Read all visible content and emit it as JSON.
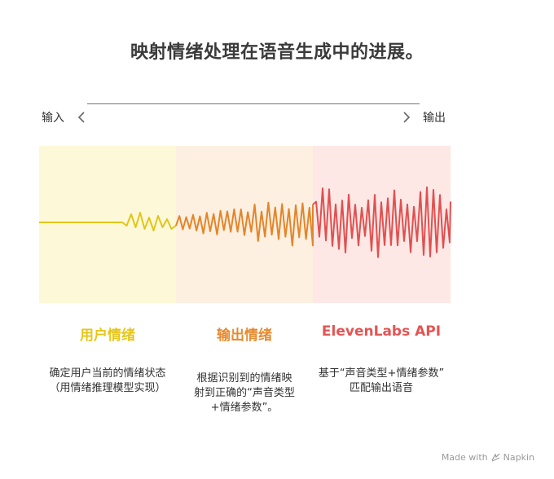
{
  "title": "映射情绪处理在语音生成中的进展。",
  "flow": {
    "input_label": "输入",
    "output_label": "输出"
  },
  "colors": {
    "panel_1_bg": "#fdf8d8",
    "panel_2_bg": "#fdf0e1",
    "panel_3_bg": "#fde8e6",
    "stage_1": "#e6c619",
    "stage_2": "#e68a2e",
    "stage_3": "#e35454"
  },
  "stages": [
    {
      "title": "用户情绪",
      "description_lines": [
        "确定用户当前的情绪状态",
        "（用情绪推理模型实现）"
      ]
    },
    {
      "title": "输出情绪",
      "description_lines": [
        "根据识别到的情绪映",
        "射到正确的“声音类型",
        "+情绪参数”。"
      ]
    },
    {
      "title": "ElevenLabs API",
      "description_lines": [
        "基于“声音类型+情绪参数”",
        "匹配输出语音"
      ]
    }
  ],
  "watermark": {
    "text": "Made with",
    "brand": "Napkin"
  }
}
